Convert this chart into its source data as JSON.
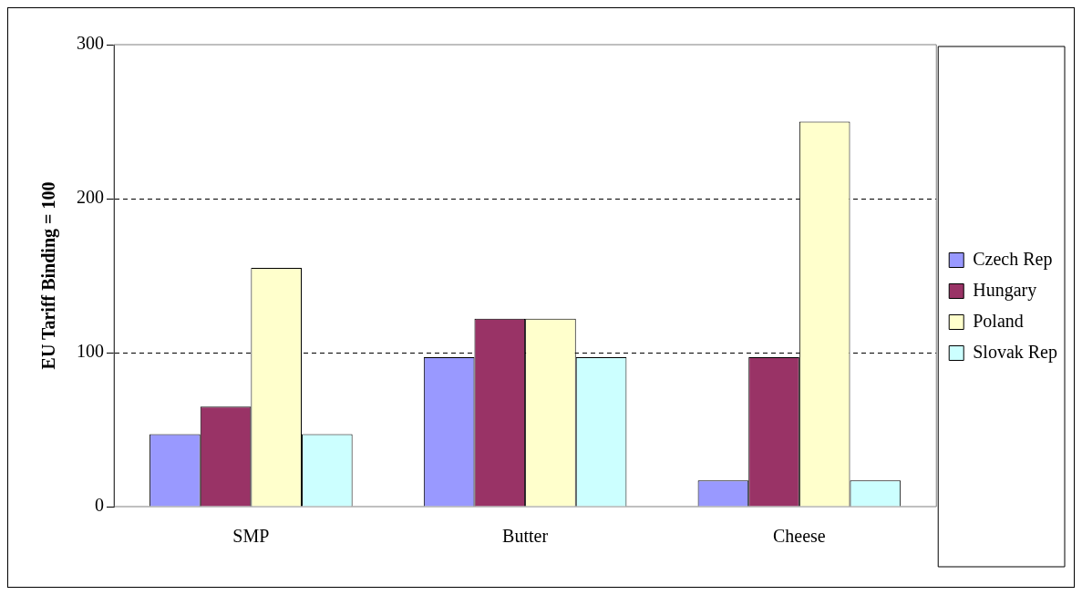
{
  "chart_data": {
    "type": "bar",
    "ylabel": "EU Tariff Binding = 100",
    "categories": [
      "SMP",
      "Butter",
      "Cheese"
    ],
    "series": [
      {
        "name": "Czech Rep",
        "color": "#9999ff",
        "values": [
          47,
          97,
          17
        ]
      },
      {
        "name": "Hungary",
        "color": "#993366",
        "values": [
          65,
          122,
          97
        ]
      },
      {
        "name": "Poland",
        "color": "#ffffcc",
        "values": [
          155,
          122,
          250
        ]
      },
      {
        "name": "Slovak Rep",
        "color": "#ccffff",
        "values": [
          47,
          97,
          17
        ]
      }
    ],
    "ylim": [
      0,
      300
    ],
    "yticks": [
      0,
      100,
      200,
      300
    ],
    "grid": "y",
    "legend": "right"
  }
}
